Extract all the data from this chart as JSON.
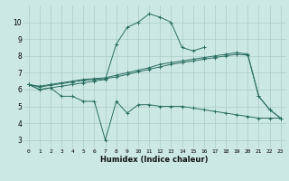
{
  "xlabel": "Humidex (Indice chaleur)",
  "x": [
    0,
    1,
    2,
    3,
    4,
    5,
    6,
    7,
    8,
    9,
    10,
    11,
    12,
    13,
    14,
    15,
    16,
    17,
    18,
    19,
    20,
    21,
    22,
    23
  ],
  "line_zigzag": [
    6.3,
    6.0,
    6.1,
    5.6,
    5.6,
    5.3,
    5.3,
    3.0,
    5.3,
    4.6,
    5.1,
    5.1,
    5.0,
    5.0,
    5.0,
    4.9,
    4.8,
    4.7,
    4.6,
    4.5,
    4.4,
    4.3,
    4.3,
    4.3
  ],
  "line_peak": [
    6.3,
    6.0,
    6.1,
    6.2,
    6.3,
    6.4,
    6.5,
    6.6,
    8.7,
    9.7,
    10.0,
    10.5,
    10.3,
    10.0,
    8.5,
    8.3,
    8.5,
    null,
    null,
    null,
    null,
    null,
    null,
    null
  ],
  "line_upper": [
    6.3,
    6.2,
    6.3,
    6.4,
    6.5,
    6.6,
    6.65,
    6.7,
    6.85,
    7.0,
    7.15,
    7.3,
    7.5,
    7.6,
    7.7,
    7.8,
    7.9,
    8.0,
    8.1,
    8.2,
    8.1,
    5.6,
    4.8,
    4.3
  ],
  "line_lower": [
    6.3,
    6.15,
    6.25,
    6.35,
    6.45,
    6.55,
    6.6,
    6.65,
    6.75,
    6.9,
    7.05,
    7.2,
    7.35,
    7.5,
    7.6,
    7.7,
    7.8,
    7.9,
    8.0,
    8.1,
    8.05,
    5.6,
    4.8,
    4.3
  ],
  "color": "#2a6e62",
  "bg_color": "#cce8e4",
  "grid_color": "#aaccc8",
  "ylim": [
    2.5,
    11.0
  ],
  "xlim": [
    -0.5,
    23.5
  ],
  "yticks": [
    3,
    4,
    5,
    6,
    7,
    8,
    9,
    10
  ],
  "xticks": [
    0,
    1,
    2,
    3,
    4,
    5,
    6,
    7,
    8,
    9,
    10,
    11,
    12,
    13,
    14,
    15,
    16,
    17,
    18,
    19,
    20,
    21,
    22,
    23
  ]
}
